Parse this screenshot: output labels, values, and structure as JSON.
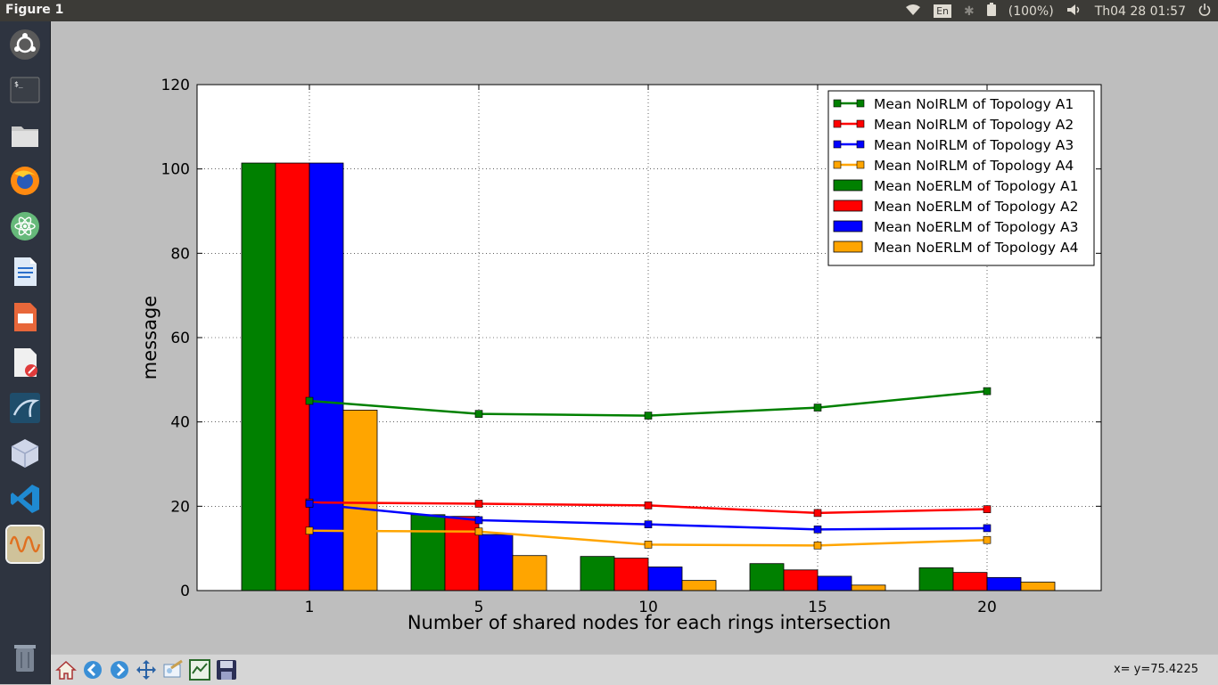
{
  "window": {
    "title": "Figure 1"
  },
  "tray": {
    "keyboard": "En",
    "battery": "(100%)",
    "clock": "Th04 28 01:57"
  },
  "status": {
    "coords": "x= y=75.4225"
  },
  "launcher": [
    "ubuntu-logo-icon",
    "terminal-icon",
    "files-icon",
    "firefox-icon",
    "atom-icon",
    "writer-icon",
    "impress-icon",
    "draw-icon",
    "mysql-workbench-icon",
    "virtualbox-icon",
    "vscode-icon",
    "matplotlib-figure-icon",
    "trash-icon"
  ],
  "toolbar": [
    "home-icon",
    "back-icon",
    "forward-icon",
    "pan-icon",
    "zoom-icon",
    "configure-subplots-icon",
    "save-icon"
  ],
  "chart_data": {
    "type": "bar",
    "xlabel": "Number of shared nodes for each rings intersection",
    "ylabel": "message",
    "ylim": [
      0,
      120
    ],
    "yticks": [
      0,
      20,
      40,
      60,
      80,
      100,
      120
    ],
    "categories": [
      "1",
      "5",
      "10",
      "15",
      "20"
    ],
    "grid": true,
    "legend_position": "top-right",
    "bar_series": [
      {
        "name": "Mean NoERLM of Topology A1",
        "color": "#008000",
        "values": [
          101.4,
          18.0,
          8.1,
          6.4,
          5.4
        ]
      },
      {
        "name": "Mean NoERLM of Topology A2",
        "color": "#ff0000",
        "values": [
          101.4,
          17.6,
          7.7,
          4.9,
          4.3
        ]
      },
      {
        "name": "Mean NoERLM of Topology A3",
        "color": "#0000ff",
        "values": [
          101.4,
          13.3,
          5.6,
          3.4,
          3.1
        ]
      },
      {
        "name": "Mean NoERLM of Topology A4",
        "color": "#ffa500",
        "values": [
          42.8,
          8.3,
          2.4,
          1.3,
          2.0
        ]
      }
    ],
    "line_series": [
      {
        "name": "Mean NoIRLM of Topology A1",
        "color": "#008000",
        "values": [
          45.0,
          41.9,
          41.5,
          43.4,
          47.3
        ]
      },
      {
        "name": "Mean NoIRLM of Topology A2",
        "color": "#ff0000",
        "values": [
          20.9,
          20.6,
          20.2,
          18.4,
          19.3
        ]
      },
      {
        "name": "Mean NoIRLM of Topology A3",
        "color": "#0000ff",
        "values": [
          20.6,
          16.7,
          15.7,
          14.5,
          14.8
        ]
      },
      {
        "name": "Mean NoIRLM of Topology A4",
        "color": "#ffa500",
        "values": [
          14.2,
          14.0,
          10.9,
          10.7,
          12.0
        ]
      }
    ]
  }
}
